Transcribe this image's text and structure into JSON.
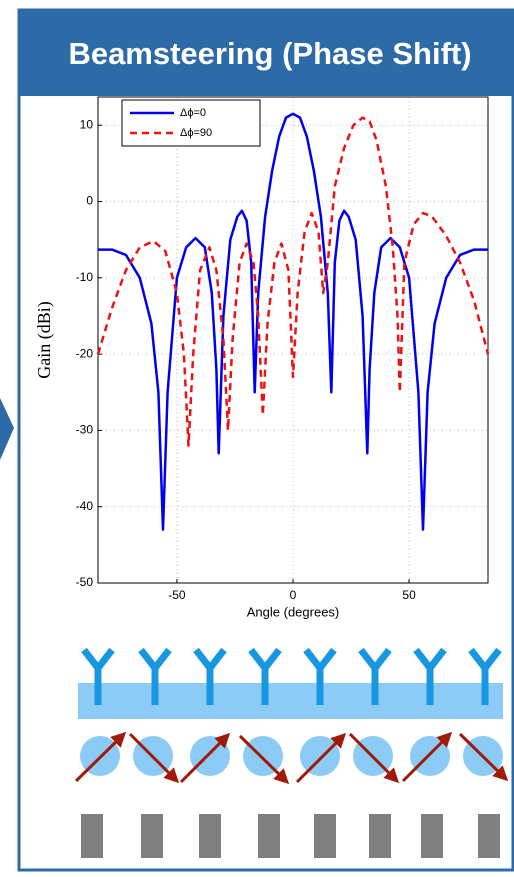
{
  "header": {
    "title": "Beamsteering (Phase Shift)"
  },
  "chart_data": {
    "type": "line",
    "xlabel": "Angle (degrees)",
    "ylabel": "Gain (dBi)",
    "xlim": [
      -84,
      84
    ],
    "ylim": [
      -50,
      13.7
    ],
    "xticks": [
      -50,
      0,
      50
    ],
    "yticks": [
      -50,
      -40,
      -30,
      -20,
      -10,
      0,
      10
    ],
    "grid": true,
    "legend": "upper left",
    "series": [
      {
        "name": "Δϕ=0",
        "color": "#0000ee",
        "dash": "solid",
        "x": [
          -84,
          -78,
          -72,
          -66,
          -61,
          -58,
          -56,
          -54,
          -50,
          -46,
          -42,
          -38,
          -35,
          -33,
          -32,
          -30,
          -27,
          -24,
          -22,
          -20,
          -18,
          -16.5,
          -15,
          -12,
          -9,
          -6,
          -3,
          0,
          3,
          6,
          9,
          12,
          15,
          16.5,
          18,
          20,
          22,
          24,
          27,
          30,
          32,
          33,
          35,
          38,
          42,
          46,
          50,
          54,
          56,
          58,
          61,
          66,
          72,
          78,
          84
        ],
        "values": [
          -6.3,
          -6.3,
          -7,
          -10,
          -16,
          -25,
          -43,
          -25,
          -10,
          -6,
          -4.8,
          -6,
          -12,
          -22,
          -33,
          -15,
          -5,
          -2,
          -1.2,
          -2.5,
          -8,
          -25,
          -12,
          -2,
          4,
          8.5,
          11,
          11.5,
          11,
          8.5,
          4,
          -2,
          -12,
          -25,
          -8,
          -2.5,
          -1.2,
          -2,
          -5,
          -15,
          -33,
          -22,
          -12,
          -6,
          -4.8,
          -6,
          -10,
          -25,
          -43,
          -25,
          -16,
          -10,
          -7,
          -6.3,
          -6.3
        ]
      },
      {
        "name": "Δϕ=90",
        "color": "#ee1111",
        "dash": "dashed",
        "x": [
          -84,
          -78,
          -72,
          -66,
          -60,
          -55,
          -50,
          -47,
          -45,
          -43,
          -40,
          -36,
          -33,
          -30,
          -28,
          -26,
          -23,
          -20,
          -17,
          -15,
          -13,
          -11,
          -8,
          -5,
          -2,
          0,
          2,
          5,
          8,
          11,
          13,
          15,
          18,
          22,
          26,
          30,
          33,
          36,
          40,
          43,
          45,
          46,
          48,
          52,
          56,
          60,
          66,
          72,
          78,
          84
        ],
        "values": [
          -20,
          -14,
          -9,
          -6,
          -5.2,
          -6.5,
          -12,
          -20,
          -32,
          -20,
          -9,
          -6,
          -9,
          -18,
          -30,
          -18,
          -8,
          -5.5,
          -8,
          -15,
          -28,
          -16,
          -8,
          -5.5,
          -9,
          -23,
          -12,
          -4,
          -1.5,
          -4,
          -12,
          -8,
          2,
          7,
          10,
          11,
          10.5,
          8,
          2,
          -6,
          -15,
          -25,
          -8,
          -3,
          -1.5,
          -2,
          -4.5,
          -8,
          -13,
          -20
        ]
      }
    ]
  }
}
